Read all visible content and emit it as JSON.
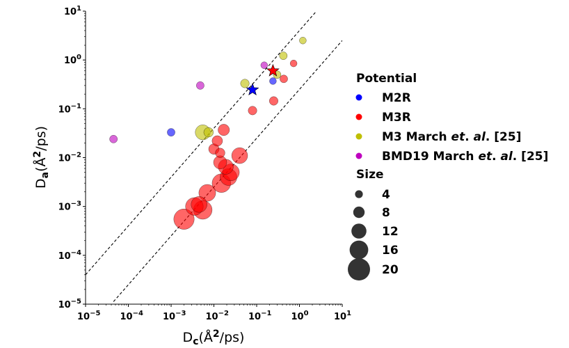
{
  "chart_data": {
    "type": "scatter",
    "title": "",
    "xlabel": "D_c(Å^2/ps)",
    "xlabel_main": "D",
    "xlabel_sub": "c",
    "xlabel_unit_open": "(Å",
    "xlabel_unit_sup": "2",
    "xlabel_unit_close": "/ps)",
    "ylabel": "D_a(Å^2/ps)",
    "ylabel_main": "D",
    "ylabel_sub": "a",
    "ylabel_unit_open": "(Å",
    "ylabel_unit_sup": "2",
    "ylabel_unit_close": "/ps)",
    "xscale": "log",
    "yscale": "log",
    "xlim": [
      1e-05,
      10
    ],
    "ylim": [
      1e-05,
      10
    ],
    "x_ticks": [
      {
        "base": "10",
        "exp": "−5"
      },
      {
        "base": "10",
        "exp": "−4"
      },
      {
        "base": "10",
        "exp": "−3"
      },
      {
        "base": "10",
        "exp": "−2"
      },
      {
        "base": "10",
        "exp": "−1"
      },
      {
        "base": "10",
        "exp": "0"
      },
      {
        "base": "10",
        "exp": "1"
      }
    ],
    "y_ticks": [
      {
        "base": "10",
        "exp": "−5"
      },
      {
        "base": "10",
        "exp": "−4"
      },
      {
        "base": "10",
        "exp": "−3"
      },
      {
        "base": "10",
        "exp": "−2"
      },
      {
        "base": "10",
        "exp": "−1"
      },
      {
        "base": "10",
        "exp": "0"
      },
      {
        "base": "10",
        "exp": "1"
      }
    ],
    "reference_lines": [
      {
        "style": "dashed",
        "ratio": 4,
        "x_range": [
          1e-05,
          2.5
        ]
      },
      {
        "style": "dashed",
        "ratio": 0.25,
        "x_range": [
          4.5e-05,
          10
        ]
      }
    ],
    "legend": {
      "placement": "right",
      "potential_title": "Potential",
      "size_title": "Size",
      "potentials": [
        {
          "key": "M2R",
          "parts": [
            "M2R"
          ],
          "color": "#0000ff"
        },
        {
          "key": "M3R",
          "parts": [
            "M3R"
          ],
          "color": "#ff0000"
        },
        {
          "key": "M3M",
          "parts": [
            "M3 March ",
            "et",
            ". ",
            "al",
            ". [25]"
          ],
          "color": "#bfbf00"
        },
        {
          "key": "BMD19",
          "parts": [
            "BMD19 March ",
            "et",
            ". ",
            "al",
            ". [25]"
          ],
          "color": "#bf00bf"
        }
      ],
      "sizes": [
        4,
        8,
        12,
        16,
        20
      ],
      "size_labels": [
        "4",
        "8",
        "12",
        "16",
        "20"
      ]
    },
    "series": [
      {
        "name": "M2R",
        "color": "#0000ff",
        "points": [
          {
            "x": 0.001,
            "y": 0.033,
            "size": 4
          },
          {
            "x": 0.24,
            "y": 0.37,
            "size": 3
          }
        ],
        "stars": [
          {
            "x": 0.08,
            "y": 0.245
          }
        ]
      },
      {
        "name": "M3R",
        "color": "#ff0000",
        "points": [
          {
            "x": 0.002,
            "y": 0.00055,
            "size": 18
          },
          {
            "x": 0.0035,
            "y": 0.001,
            "size": 15
          },
          {
            "x": 0.0045,
            "y": 0.0011,
            "size": 13
          },
          {
            "x": 0.0055,
            "y": 0.00085,
            "size": 16
          },
          {
            "x": 0.007,
            "y": 0.0019,
            "size": 14
          },
          {
            "x": 0.01,
            "y": 0.015,
            "size": 7
          },
          {
            "x": 0.012,
            "y": 0.022,
            "size": 7
          },
          {
            "x": 0.014,
            "y": 0.0125,
            "size": 6
          },
          {
            "x": 0.014,
            "y": 0.008,
            "size": 10
          },
          {
            "x": 0.015,
            "y": 0.003,
            "size": 16
          },
          {
            "x": 0.017,
            "y": 0.037,
            "size": 8
          },
          {
            "x": 0.019,
            "y": 0.0065,
            "size": 12
          },
          {
            "x": 0.022,
            "y": 0.004,
            "size": 14
          },
          {
            "x": 0.025,
            "y": 0.005,
            "size": 14
          },
          {
            "x": 0.04,
            "y": 0.011,
            "size": 13
          },
          {
            "x": 0.08,
            "y": 0.092,
            "size": 5
          },
          {
            "x": 0.25,
            "y": 0.145,
            "size": 5
          },
          {
            "x": 0.43,
            "y": 0.41,
            "size": 4
          },
          {
            "x": 0.73,
            "y": 0.85,
            "size": 3
          }
        ],
        "stars": [
          {
            "x": 0.24,
            "y": 0.6
          }
        ]
      },
      {
        "name": "M3 March et. al. [25]",
        "color": "#bfbf00",
        "points": [
          {
            "x": 0.0055,
            "y": 0.033,
            "size": 12
          },
          {
            "x": 0.0075,
            "y": 0.033,
            "size": 6
          },
          {
            "x": 0.053,
            "y": 0.33,
            "size": 5
          },
          {
            "x": 0.3,
            "y": 0.5,
            "size": 4
          },
          {
            "x": 0.42,
            "y": 1.22,
            "size": 4
          },
          {
            "x": 1.2,
            "y": 2.5,
            "size": 3
          }
        ]
      },
      {
        "name": "BMD19 March et. al. [25]",
        "color": "#bf00bf",
        "points": [
          {
            "x": 4.5e-05,
            "y": 0.024,
            "size": 4
          },
          {
            "x": 0.0048,
            "y": 0.3,
            "size": 4
          },
          {
            "x": 0.15,
            "y": 0.78,
            "size": 3
          }
        ]
      }
    ]
  }
}
